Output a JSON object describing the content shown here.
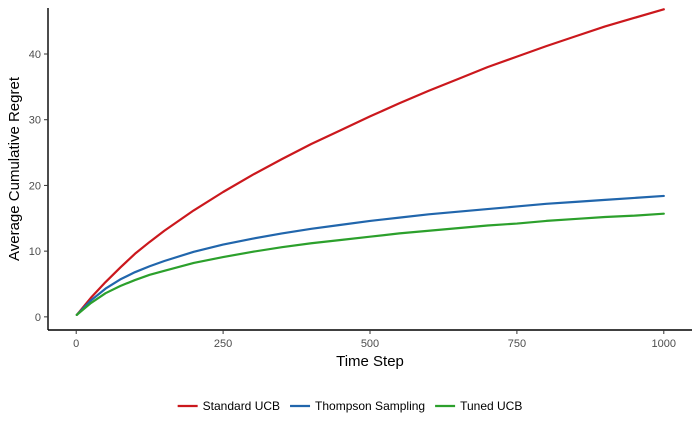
{
  "chart_data": {
    "type": "line",
    "title": "",
    "xlabel": "Time Step",
    "ylabel": "Average Cumulative Regret",
    "xlim": [
      -48,
      1048
    ],
    "ylim": [
      -2,
      47
    ],
    "xticks": [
      0,
      250,
      500,
      750,
      1000
    ],
    "yticks": [
      0,
      10,
      20,
      30,
      40
    ],
    "grid": false,
    "legend_position": "bottom",
    "x": [
      1,
      25,
      50,
      75,
      100,
      125,
      150,
      200,
      250,
      300,
      350,
      400,
      450,
      500,
      550,
      600,
      650,
      700,
      750,
      800,
      850,
      900,
      950,
      1000
    ],
    "series": [
      {
        "name": "Standard UCB",
        "color": "#cb181d",
        "values": [
          0.3,
          2.9,
          5.3,
          7.5,
          9.6,
          11.4,
          13.1,
          16.2,
          19.0,
          21.6,
          24.0,
          26.3,
          28.4,
          30.5,
          32.5,
          34.4,
          36.2,
          38.0,
          39.6,
          41.2,
          42.7,
          44.2,
          45.5,
          46.8
        ]
      },
      {
        "name": "Thompson Sampling",
        "color": "#2166ac",
        "values": [
          0.3,
          2.5,
          4.3,
          5.7,
          6.8,
          7.7,
          8.5,
          9.9,
          11.0,
          11.9,
          12.7,
          13.4,
          14.0,
          14.6,
          15.1,
          15.6,
          16.0,
          16.4,
          16.8,
          17.2,
          17.5,
          17.8,
          18.1,
          18.4
        ]
      },
      {
        "name": "Tuned UCB",
        "color": "#2ca02c",
        "values": [
          0.3,
          2.1,
          3.6,
          4.7,
          5.6,
          6.4,
          7.0,
          8.2,
          9.1,
          9.9,
          10.6,
          11.2,
          11.7,
          12.2,
          12.7,
          13.1,
          13.5,
          13.9,
          14.2,
          14.6,
          14.9,
          15.2,
          15.4,
          15.7
        ]
      }
    ]
  }
}
